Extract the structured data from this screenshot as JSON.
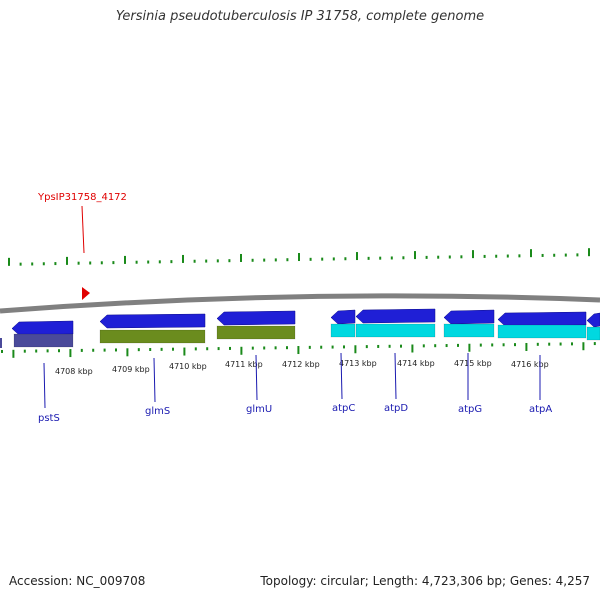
{
  "title": "Yersinia pseudotuberculosis IP 31758, complete genome",
  "marker_label": "YpsIP31758_4172",
  "colors": {
    "forward_strand": "#1f1fd6",
    "reverse_strand_a": "#4a4a9a",
    "reverse_strand_b": "#6b8c1e",
    "reverse_strand_c": "#00d8e0",
    "ticks": "#1a8a1a",
    "backbone": "#808080",
    "gene_labels": "#1a1ab0",
    "marker": "#e00000"
  },
  "axis_ticks": [
    "4708 kbp",
    "4709 kbp",
    "4710 kbp",
    "4711 kbp",
    "4712 kbp",
    "4713 kbp",
    "4714 kbp",
    "4715 kbp",
    "4716 kbp"
  ],
  "genes": [
    {
      "label": "pstS"
    },
    {
      "label": "glmS"
    },
    {
      "label": "glmU"
    },
    {
      "label": "atpC"
    },
    {
      "label": "atpD"
    },
    {
      "label": "atpG"
    },
    {
      "label": "atpA"
    }
  ],
  "footer": {
    "accession": "Accession: NC_009708",
    "summary": "Topology: circular; Length: 4,723,306 bp; Genes: 4,257"
  }
}
